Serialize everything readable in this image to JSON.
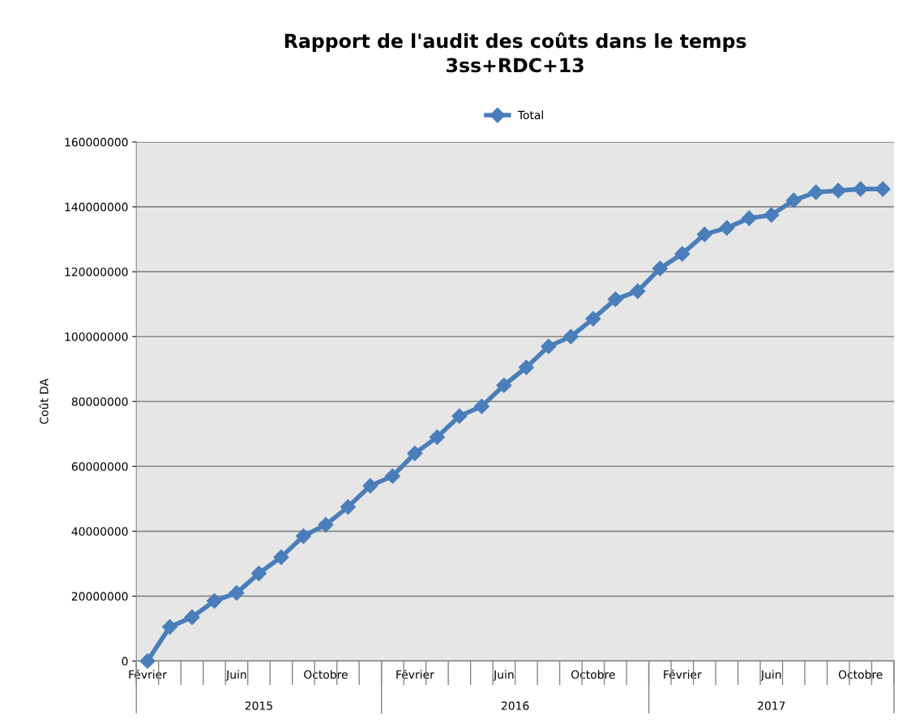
{
  "chart_data": {
    "type": "line",
    "title": "Rapport de l'audit des coûts dans le temps\n3ss+RDC+13",
    "ylabel": "Coût DA",
    "categories": [
      "Février",
      null,
      null,
      null,
      "Juin",
      null,
      null,
      null,
      "Octobre",
      null,
      null,
      null,
      "Février",
      null,
      null,
      null,
      "Juin",
      null,
      null,
      null,
      "Octobre",
      null,
      null,
      null,
      "Février",
      null,
      null,
      null,
      "Juin",
      null,
      null,
      null,
      "Octobre",
      null
    ],
    "series": [
      {
        "name": "Total",
        "color": "#4a7ebb",
        "values": [
          0,
          10500000,
          13500000,
          18500000,
          21000000,
          27000000,
          32000000,
          38500000,
          42000000,
          47500000,
          54000000,
          57000000,
          64000000,
          69000000,
          75500000,
          78500000,
          85000000,
          90500000,
          97000000,
          100000000,
          105500000,
          111500000,
          114000000,
          121000000,
          125500000,
          131500000,
          133500000,
          136500000,
          137500000,
          142000000,
          144500000,
          145000000,
          145500000,
          145500000
        ]
      }
    ],
    "annotations": [
      "2015",
      "2016",
      "2017"
    ],
    "ylim": [
      0,
      160000000
    ],
    "yticks": [
      0,
      20000000,
      40000000,
      60000000,
      80000000,
      100000000,
      120000000,
      140000000,
      160000000
    ],
    "grid": "y",
    "legend": "top",
    "marker": "diamond",
    "line_style": "solid"
  }
}
